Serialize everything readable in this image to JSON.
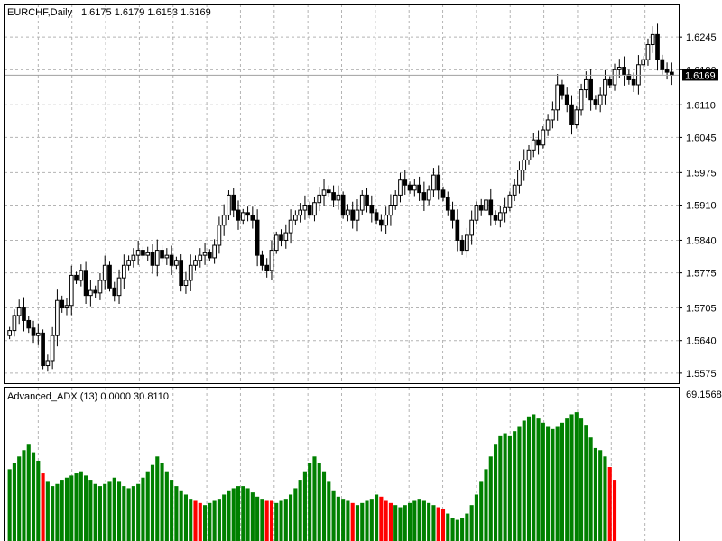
{
  "window": {
    "symbol_header": "EURCHF,Daily",
    "ohlc_header": "1.6175 1.6179 1.6153 1.6169"
  },
  "colors": {
    "background": "#ffffff",
    "grid": "#b4b4b4",
    "candle": "#000000",
    "price_line": "#a0a0a0",
    "price_tag_bg": "#000000",
    "price_tag_text": "#ffffff",
    "hist_up": "#008000",
    "hist_down": "#ff0000"
  },
  "chart_data": [
    {
      "type": "candlestick",
      "title": "EURCHF,Daily",
      "subtitle": "1.6175 1.6179 1.6153 1.6169",
      "ylim": [
        1.5555,
        1.631
      ],
      "y_ticks": [
        "1.6245",
        "1.6180",
        "1.6110",
        "1.6045",
        "1.5975",
        "1.5910",
        "1.5840",
        "1.5775",
        "1.5705",
        "1.5640",
        "1.5575"
      ],
      "grid": true,
      "current_price": "1.6169",
      "closes": [
        1.566,
        1.569,
        1.5705,
        1.568,
        1.5665,
        1.565,
        1.5655,
        1.559,
        1.56,
        1.565,
        1.572,
        1.5705,
        1.571,
        1.577,
        1.576,
        1.578,
        1.573,
        1.574,
        1.5735,
        1.576,
        1.579,
        1.5745,
        1.573,
        1.5765,
        1.579,
        1.58,
        1.581,
        1.582,
        1.581,
        1.5815,
        1.579,
        1.582,
        1.5805,
        1.581,
        1.579,
        1.58,
        1.575,
        1.576,
        1.579,
        1.58,
        1.581,
        1.5815,
        1.5805,
        1.583,
        1.587,
        1.589,
        1.593,
        1.59,
        1.588,
        1.5895,
        1.589,
        1.588,
        1.581,
        1.579,
        1.578,
        1.582,
        1.585,
        1.584,
        1.5855,
        1.588,
        1.589,
        1.59,
        1.591,
        1.589,
        1.5915,
        1.593,
        1.594,
        1.5935,
        1.592,
        1.593,
        1.589,
        1.59,
        1.588,
        1.59,
        1.593,
        1.591,
        1.5895,
        1.588,
        1.587,
        1.589,
        1.591,
        1.593,
        1.596,
        1.595,
        1.594,
        1.595,
        1.5935,
        1.592,
        1.594,
        1.597,
        1.594,
        1.5925,
        1.59,
        1.588,
        1.584,
        1.582,
        1.585,
        1.588,
        1.591,
        1.59,
        1.592,
        1.589,
        1.588,
        1.5895,
        1.5905,
        1.593,
        1.595,
        1.598,
        1.6,
        1.602,
        1.604,
        1.603,
        1.606,
        1.608,
        1.61,
        1.615,
        1.613,
        1.611,
        1.607,
        1.61,
        1.614,
        1.616,
        1.612,
        1.611,
        1.613,
        1.616,
        1.615,
        1.618,
        1.6185,
        1.617,
        1.616,
        1.615,
        1.619,
        1.62,
        1.623,
        1.625,
        1.62,
        1.618,
        1.6175,
        1.6169
      ]
    },
    {
      "type": "bar",
      "title": "Advanced_ADX (13) 0.0000 30.8110",
      "ylim": [
        0,
        69.1568
      ],
      "y_max_label": "69.1568",
      "grid": true,
      "values": [
        34,
        37,
        40,
        43,
        46,
        42,
        38,
        32,
        28,
        26,
        27,
        29,
        30,
        31,
        32,
        33,
        31,
        29,
        27,
        26,
        27,
        28,
        30,
        28,
        26,
        25,
        26,
        27,
        30,
        33,
        36,
        40,
        37,
        33,
        29,
        26,
        24,
        22,
        20,
        19,
        18,
        17,
        18,
        19,
        20,
        22,
        24,
        25,
        26,
        26,
        25,
        23,
        21,
        20,
        19,
        19,
        18,
        19,
        20,
        22,
        25,
        29,
        33,
        37,
        40,
        37,
        33,
        28,
        24,
        21,
        20,
        19,
        18,
        17,
        18,
        19,
        20,
        22,
        21,
        19,
        18,
        17,
        16,
        17,
        18,
        19,
        20,
        19,
        18,
        17,
        16,
        15,
        13,
        11,
        10,
        11,
        13,
        17,
        22,
        28,
        34,
        40,
        46,
        50,
        51,
        50,
        52,
        54,
        57,
        59,
        60,
        58,
        56,
        54,
        53,
        54,
        56,
        58,
        60,
        61,
        58,
        55,
        49,
        44,
        43,
        40,
        35,
        29
      ],
      "colors": [
        "u",
        "u",
        "u",
        "u",
        "u",
        "u",
        "u",
        "d",
        "u",
        "u",
        "u",
        "u",
        "u",
        "u",
        "u",
        "u",
        "u",
        "u",
        "u",
        "u",
        "u",
        "u",
        "u",
        "u",
        "u",
        "u",
        "u",
        "u",
        "u",
        "u",
        "u",
        "u",
        "u",
        "u",
        "u",
        "u",
        "u",
        "u",
        "u",
        "d",
        "d",
        "u",
        "u",
        "u",
        "u",
        "u",
        "u",
        "u",
        "u",
        "u",
        "u",
        "u",
        "u",
        "u",
        "d",
        "d",
        "u",
        "u",
        "u",
        "u",
        "u",
        "u",
        "u",
        "u",
        "u",
        "u",
        "u",
        "u",
        "u",
        "u",
        "u",
        "u",
        "d",
        "u",
        "u",
        "u",
        "u",
        "u",
        "d",
        "d",
        "d",
        "u",
        "u",
        "u",
        "u",
        "u",
        "u",
        "u",
        "u",
        "u",
        "d",
        "d",
        "u",
        "u",
        "u",
        "u",
        "u",
        "u",
        "u",
        "u",
        "u",
        "u",
        "u",
        "u",
        "u",
        "u",
        "u",
        "u",
        "u",
        "u",
        "u",
        "u",
        "u",
        "u",
        "u",
        "u",
        "u",
        "u",
        "u",
        "u",
        "u",
        "u",
        "u",
        "u",
        "u",
        "u",
        "d",
        "d"
      ]
    }
  ]
}
